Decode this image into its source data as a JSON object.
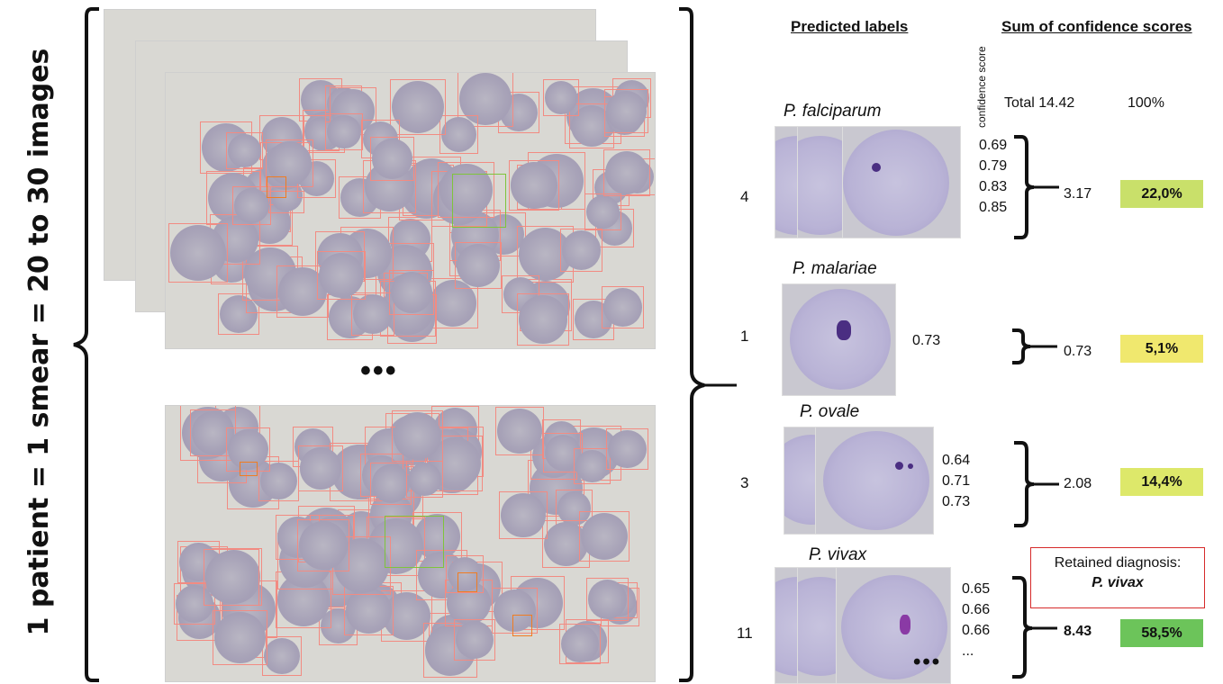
{
  "left_title": "1 patient = 1 smear = 20 to 30 images",
  "ellipsis": "•••",
  "headers": {
    "predicted": "Predicted labels",
    "sum": "Sum of confidence scores",
    "confidence": "confidence score"
  },
  "totals": {
    "total": "Total 14.42",
    "pct": "100%"
  },
  "rows": [
    {
      "species": "P. falciparum",
      "count": "4",
      "scores": [
        "0.69",
        "0.79",
        "0.83",
        "0.85"
      ],
      "sum": "3.17",
      "pct": "22,0%",
      "color": "#c9e06a"
    },
    {
      "species": "P. malariae",
      "count": "1",
      "scores": [
        "0.73"
      ],
      "sum": "0.73",
      "pct": "5,1%",
      "color": "#f0e86e"
    },
    {
      "species": "P. ovale",
      "count": "3",
      "scores": [
        "0.64",
        "0.71",
        "0.73"
      ],
      "sum": "2.08",
      "pct": "14,4%",
      "color": "#dde86a"
    },
    {
      "species": "P. vivax",
      "count": "11",
      "scores": [
        "0.65",
        "0.66",
        "0.66",
        "..."
      ],
      "sum": "8.43",
      "pct": "58,5%",
      "color": "#6cc45a"
    }
  ],
  "diagnosis": {
    "label": "Retained diagnosis:",
    "value": "P. vivax"
  },
  "thumb_ellipsis": "•••"
}
